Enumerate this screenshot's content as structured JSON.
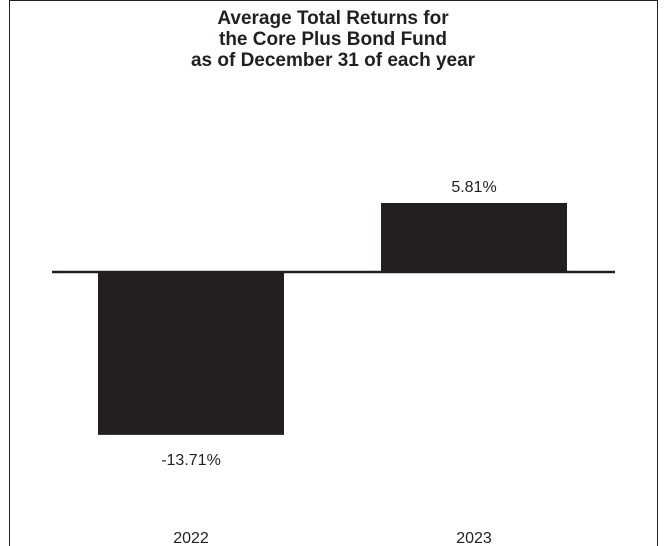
{
  "chart_data": {
    "type": "bar",
    "title_lines": [
      "Average Total Returns for",
      "the Core Plus Bond Fund",
      "as of December 31 of each year"
    ],
    "categories": [
      "2022",
      "2023"
    ],
    "values": [
      -13.71,
      5.81
    ],
    "data_labels": [
      "-13.71%",
      "5.81%"
    ],
    "xlabel": "",
    "ylabel": "",
    "grid": false,
    "legend": "none",
    "bar_color": "#231f20"
  }
}
